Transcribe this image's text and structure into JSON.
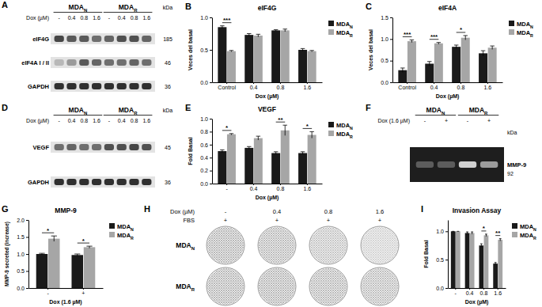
{
  "blots": [
    {
      "panel": "A",
      "type": "western",
      "groups": [
        "MDAN",
        "MDAR"
      ],
      "row_label": "Dox (µM)",
      "lanes": [
        "-",
        "0.4",
        "0.8",
        "1.6",
        "-",
        "0.4",
        "0.8",
        "1.6"
      ],
      "unit": "kDa",
      "rows": [
        {
          "name": "eIF4G",
          "kda": 185,
          "intensity": [
            0.75,
            0.65,
            0.65,
            0.55,
            0.6,
            0.7,
            0.7,
            0.6
          ]
        },
        {
          "name": "eIF4A I / II",
          "kda": 46,
          "intensity": [
            0.2,
            0.35,
            0.65,
            0.6,
            0.55,
            0.55,
            0.6,
            0.55
          ]
        },
        {
          "name": "GAPDH",
          "kda": 36,
          "intensity": [
            0.85,
            0.85,
            0.85,
            0.85,
            0.85,
            0.85,
            0.85,
            0.85
          ]
        }
      ]
    },
    {
      "panel": "D",
      "type": "western",
      "groups": [
        "MDAN",
        "MDAR"
      ],
      "row_label": "Dox (µM)",
      "lanes": [
        "-",
        "0.4",
        "0.8",
        "1.6",
        "-",
        "0.4",
        "0.8",
        "1.6"
      ],
      "unit": "kDa",
      "rows": [
        {
          "name": "VEGF",
          "kda": 45,
          "intensity": [
            0.55,
            0.6,
            0.55,
            0.55,
            0.7,
            0.7,
            0.75,
            0.7
          ]
        },
        {
          "name": "GAPDH",
          "kda": 36,
          "intensity": [
            0.85,
            0.85,
            0.85,
            0.85,
            0.85,
            0.85,
            0.85,
            0.85
          ]
        }
      ]
    },
    {
      "panel": "F",
      "type": "zymogram",
      "groups": [
        "MDAN",
        "MDAR"
      ],
      "row_label": "Dox (1.6 µM)",
      "lanes": [
        "-",
        "+",
        "-",
        "+"
      ],
      "unit": "kDa",
      "rows": [
        {
          "name": "MMP-9",
          "kda": 92,
          "intensity": [
            0.3,
            0.3,
            0.85,
            0.6
          ]
        }
      ]
    }
  ],
  "invasion_images": {
    "panel": "H",
    "row_label": "Dox (µM)",
    "columns": [
      "-",
      "0.4",
      "0.8",
      "1.6"
    ],
    "serum_label": "FBS",
    "serum": [
      "+",
      "+",
      "+",
      "+"
    ],
    "rows": [
      "MDAN",
      "MDAR"
    ],
    "density": [
      [
        0.85,
        0.8,
        0.65,
        0.45
      ],
      [
        0.85,
        0.85,
        0.8,
        0.75
      ]
    ]
  },
  "chart_data": [
    {
      "panel": "B",
      "type": "bar",
      "title": "eIF4G",
      "x_label": "Dox (µM)",
      "y_label": "Veces del basal",
      "categories": [
        "Control",
        "0.4",
        "0.8",
        "1.6"
      ],
      "series": [
        {
          "name": "MDAN",
          "color": "#1a1a1a",
          "values": [
            0.85,
            0.73,
            0.8,
            0.5
          ],
          "errors": [
            0.02,
            0.02,
            0.01,
            0.02
          ]
        },
        {
          "name": "MDAR",
          "color": "#a6a6a6",
          "values": [
            0.48,
            0.72,
            0.8,
            0.48
          ],
          "errors": [
            0.01,
            0.02,
            0.02,
            0.01
          ]
        }
      ],
      "ylim": [
        0,
        1.0
      ],
      "yticks": [
        {
          "value": 0,
          "label": "0.0"
        },
        0.5,
        {
          "value": 1.0,
          "label": "1.0"
        }
      ],
      "legend": "right",
      "annotations": [
        {
          "category": "Control",
          "text": "***"
        }
      ]
    },
    {
      "panel": "C",
      "type": "bar",
      "title": "eIF4A",
      "x_label": "Dox (µM)",
      "y_label": "Veces del basal",
      "categories": [
        "Control",
        "0.4",
        "0.8",
        "1.6"
      ],
      "series": [
        {
          "name": "MDAN",
          "color": "#1a1a1a",
          "values": [
            0.28,
            0.43,
            0.82,
            0.67
          ],
          "errors": [
            0.05,
            0.05,
            0.04,
            0.06
          ]
        },
        {
          "name": "MDAR",
          "color": "#a6a6a6",
          "values": [
            0.95,
            0.9,
            1.03,
            0.8
          ],
          "errors": [
            0.03,
            0.02,
            0.05,
            0.04
          ]
        }
      ],
      "ylim": [
        0,
        1.5
      ],
      "yticks": [
        {
          "value": 0,
          "label": "0.0"
        },
        0.5,
        {
          "value": 1.0,
          "label": "1.0"
        },
        1.5
      ],
      "legend": "right",
      "annotations": [
        {
          "category": "Control",
          "text": "***"
        },
        {
          "category": "0.4",
          "text": "***"
        },
        {
          "category": "0.8",
          "text": "*"
        }
      ]
    },
    {
      "panel": "E",
      "type": "bar",
      "title": "VEGF",
      "x_label": "Dox (µM)",
      "y_label": "Fold Basal",
      "categories": [
        "-",
        "0.4",
        "0.8",
        "1.6"
      ],
      "series": [
        {
          "name": "MDAN",
          "color": "#1a1a1a",
          "values": [
            0.5,
            0.55,
            0.47,
            0.47
          ],
          "errors": [
            0.02,
            0.02,
            0.02,
            0.02
          ]
        },
        {
          "name": "MDAR",
          "color": "#a6a6a6",
          "values": [
            0.76,
            0.7,
            0.82,
            0.75
          ],
          "errors": [
            0.01,
            0.03,
            0.08,
            0.05
          ]
        }
      ],
      "ylim": [
        0,
        1.0
      ],
      "yticks": [
        {
          "value": 0,
          "label": "0.0"
        },
        0.2,
        0.4,
        0.6,
        0.8,
        {
          "value": 1.0,
          "label": "1.0"
        }
      ],
      "legend": "right",
      "annotations": [
        {
          "category": "-",
          "text": "*"
        },
        {
          "category": "0.8",
          "text": "**"
        },
        {
          "category": "1.6",
          "text": "*"
        }
      ]
    },
    {
      "panel": "G",
      "type": "bar",
      "title": "MMP-9",
      "x_label": "Dox (1.6 µM)",
      "y_label": "MMP-9 secreted (increase)",
      "categories": [
        "-",
        "+"
      ],
      "series": [
        {
          "name": "MDAN",
          "color": "#1a1a1a",
          "values": [
            1.0,
            0.97
          ],
          "errors": [
            0.02,
            0.03
          ]
        },
        {
          "name": "MDAR",
          "color": "#a6a6a6",
          "values": [
            1.45,
            1.2
          ],
          "errors": [
            0.08,
            0.03
          ]
        }
      ],
      "ylim": [
        0,
        2.0
      ],
      "yticks": [
        {
          "value": 0,
          "label": "0.0"
        },
        0.5,
        {
          "value": 1.0,
          "label": "1.0"
        },
        1.5,
        {
          "value": 2.0,
          "label": "2.0"
        }
      ],
      "legend": "right",
      "annotations": [
        {
          "category": "-",
          "text": "*"
        },
        {
          "category": "+",
          "text": "*"
        }
      ]
    },
    {
      "panel": "I",
      "type": "bar",
      "title": "Invasion Assay",
      "x_label": "Dox (µM)",
      "y_label": "Fold Basal",
      "categories": [
        "-",
        "0.4",
        "0.8",
        "1.6"
      ],
      "series": [
        {
          "name": "MDAN",
          "color": "#1a1a1a",
          "values": [
            1.0,
            0.97,
            0.75,
            0.43
          ],
          "errors": [
            0.0,
            0.02,
            0.03,
            0.02
          ]
        },
        {
          "name": "MDAR",
          "color": "#a6a6a6",
          "values": [
            1.0,
            0.97,
            0.93,
            0.85
          ],
          "errors": [
            0.0,
            0.02,
            0.02,
            0.02
          ]
        }
      ],
      "ylim": [
        0,
        1.2
      ],
      "yticks": [
        {
          "value": 0,
          "label": "0.0"
        },
        0.5,
        {
          "value": 1.0,
          "label": "1.0"
        }
      ],
      "legend": "right",
      "annotations": [
        {
          "category": "0.8",
          "text": "*"
        },
        {
          "category": "1.6",
          "text": "**"
        }
      ]
    }
  ]
}
